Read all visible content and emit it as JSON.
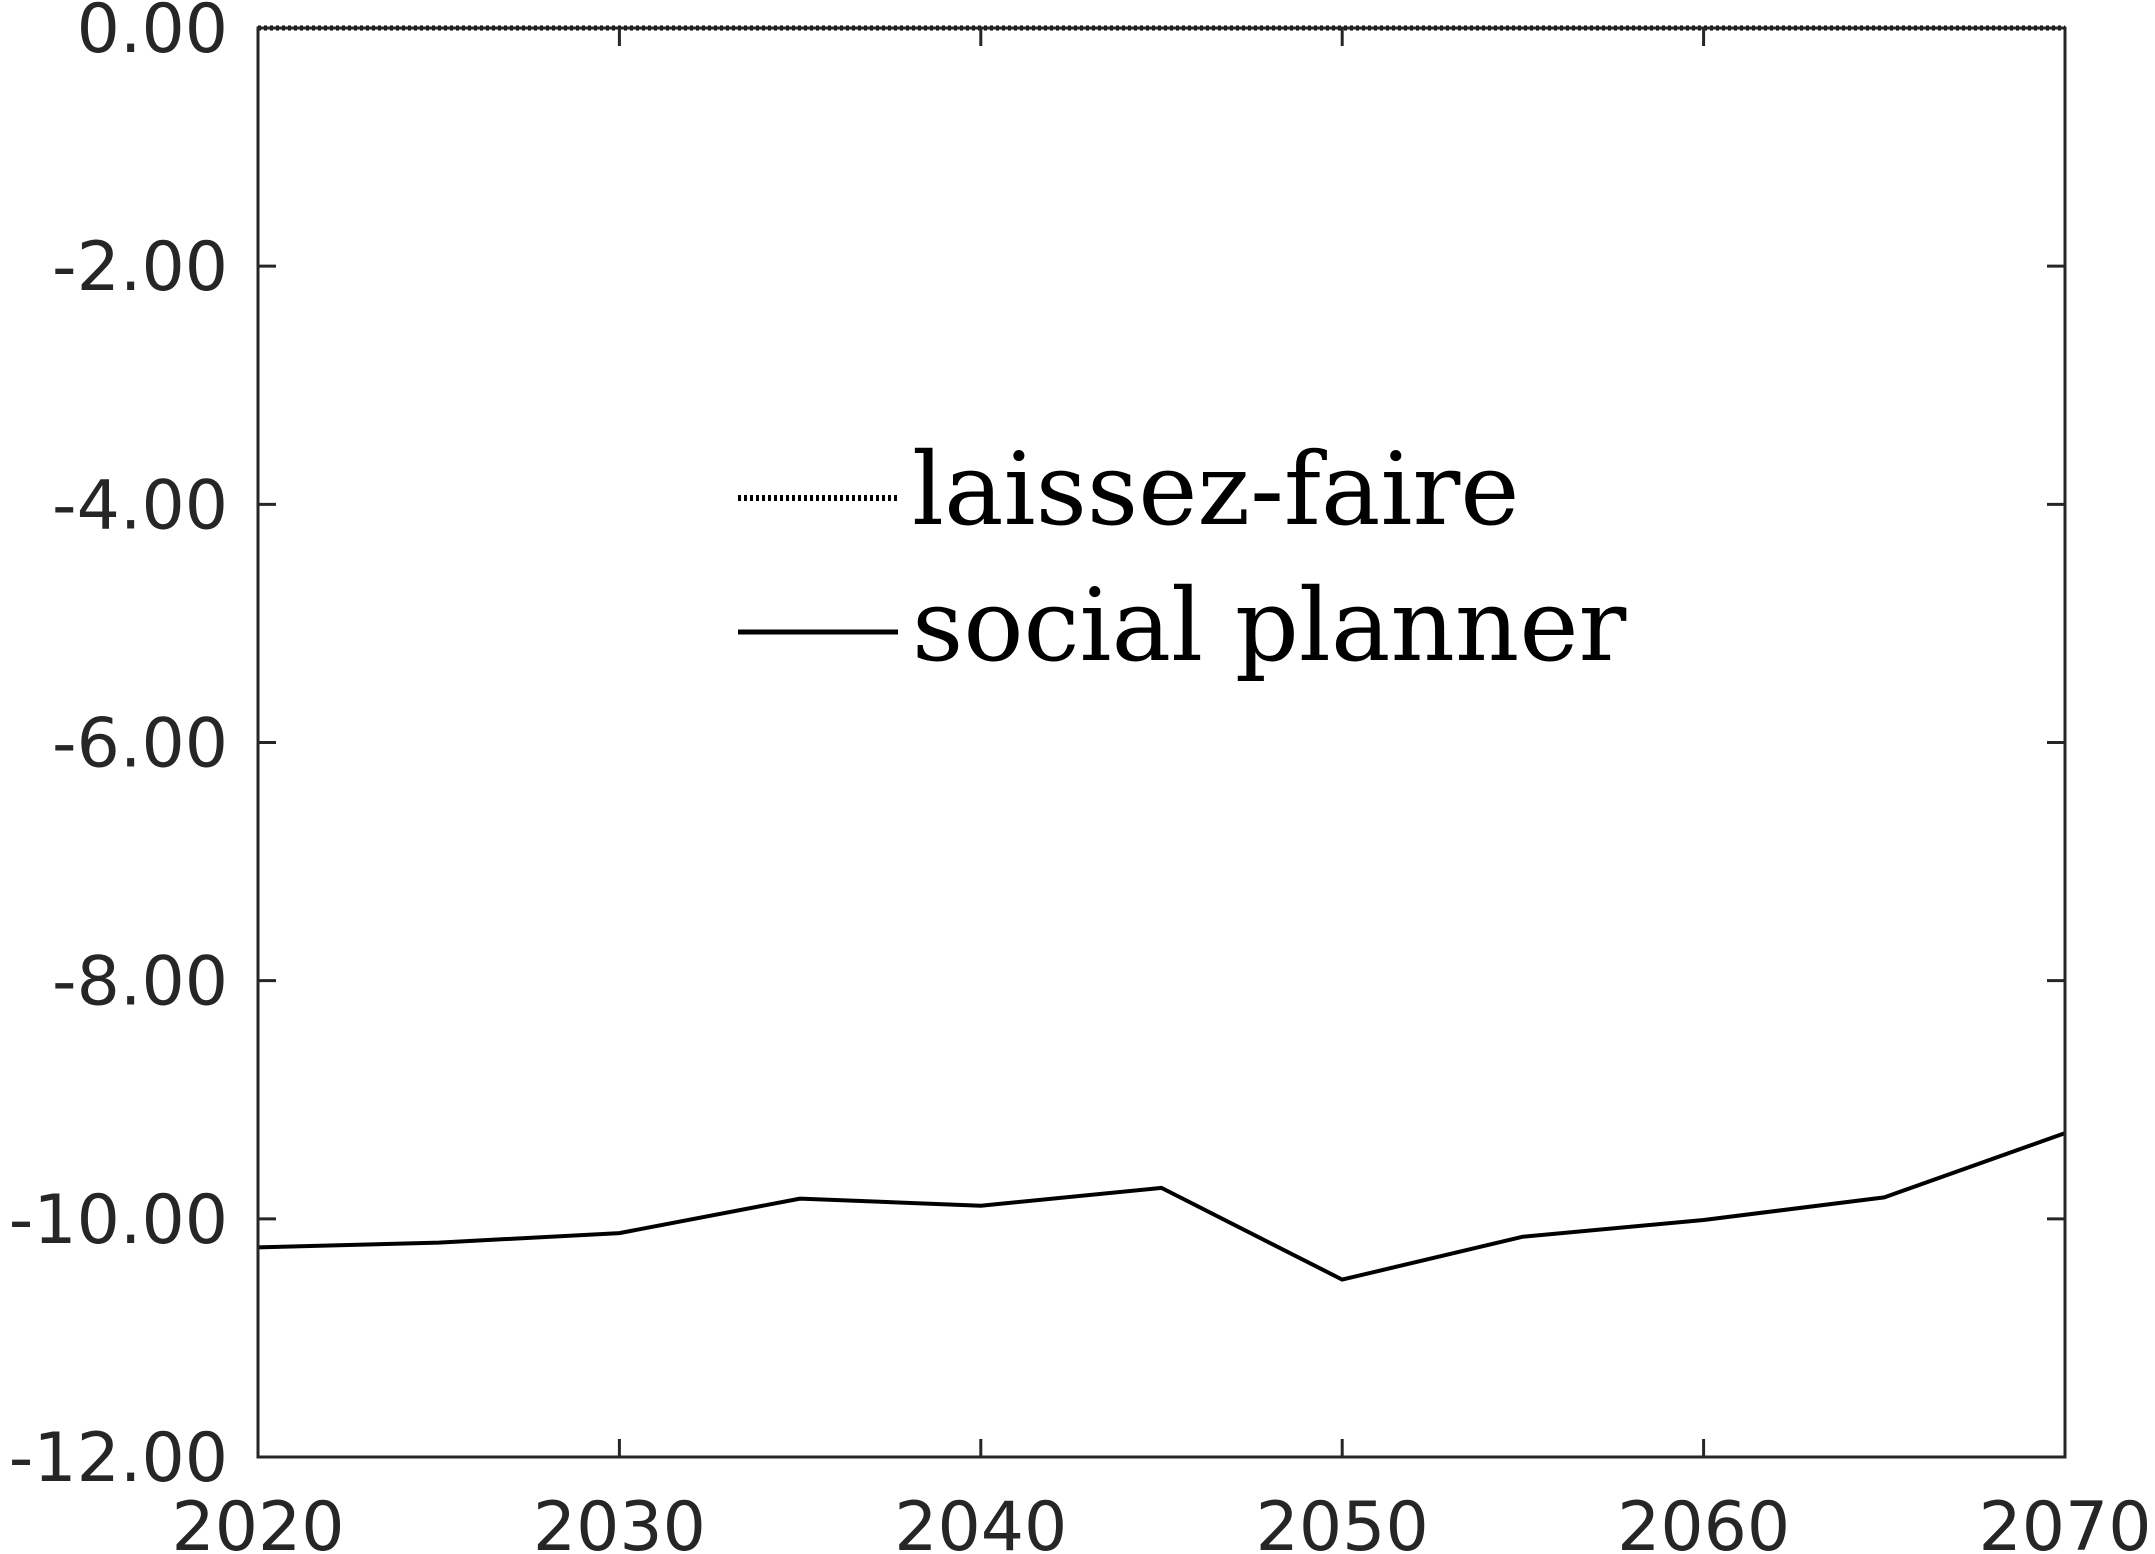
{
  "chart_data": {
    "type": "line",
    "title": "",
    "xlabel": "",
    "ylabel": "",
    "xlim": [
      2020,
      2070
    ],
    "ylim": [
      -12,
      0
    ],
    "xticks": [
      2020,
      2030,
      2040,
      2050,
      2060,
      2070
    ],
    "xtick_labels": [
      "2020",
      "2030",
      "2040",
      "2050",
      "2060",
      "2070"
    ],
    "yticks": [
      0,
      -2,
      -4,
      -6,
      -8,
      -10,
      -12
    ],
    "ytick_labels": [
      "0.00",
      "-2.00",
      "-4.00",
      "-6.00",
      "-8.00",
      "-10.00",
      "-12.00"
    ],
    "grid": false,
    "legend_position": "center",
    "x": [
      2020,
      2025,
      2030,
      2035,
      2040,
      2045,
      2050,
      2055,
      2060,
      2065,
      2070
    ],
    "series": [
      {
        "name": "laissez-faire",
        "style": "dotted",
        "color": "#000000",
        "values": [
          0,
          0,
          0,
          0,
          0,
          0,
          0,
          0,
          0,
          0,
          0
        ]
      },
      {
        "name": "social planner",
        "style": "solid",
        "color": "#000000",
        "values": [
          -10.24,
          -10.2,
          -10.12,
          -9.83,
          -9.89,
          -9.74,
          -10.51,
          -10.15,
          -10.01,
          -9.82,
          -9.28
        ]
      }
    ]
  }
}
